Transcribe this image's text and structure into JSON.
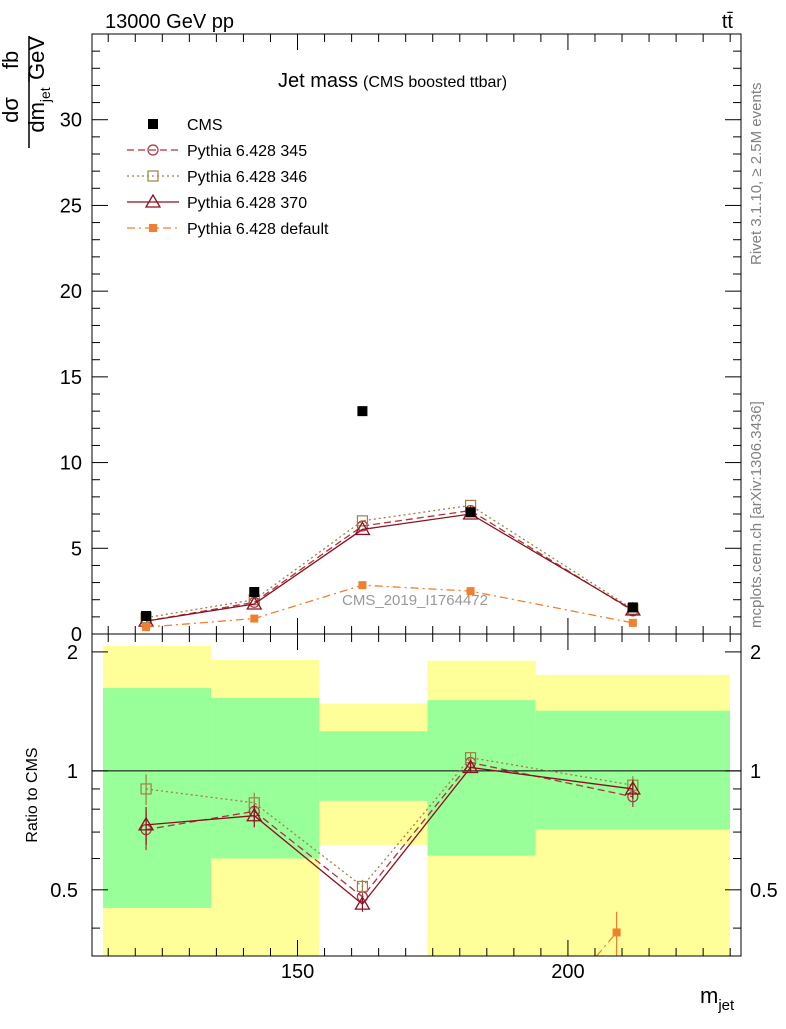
{
  "header": {
    "energy_label": "13000 GeV pp",
    "process_label": "tt̄"
  },
  "side_labels": {
    "rivet": "Rivet 3.1.10, ≥ 2.5M events",
    "mcplots": "mcplots.cern.ch [arXiv:1306.3436]"
  },
  "chart_data": [
    {
      "type": "scatter",
      "title": "Jet mass",
      "subtitle": "(CMS boosted ttbar)",
      "ylabel": "dσ/dm_jet [fb/GeV]",
      "ylabel_numerator": "dσ",
      "ylabel_denominator": "dm",
      "ylabel_denominator_sub": "jet",
      "ylabel_unit_top": "fb",
      "ylabel_unit_bottom": "GeV",
      "watermark": "CMS_2019_I1764472",
      "xlim": [
        112,
        232
      ],
      "ylim": [
        0,
        35
      ],
      "yticks": [
        0,
        5,
        10,
        15,
        20,
        25,
        30
      ],
      "legend_position": "top-left",
      "bin_edges": [
        112,
        132,
        152,
        172,
        192,
        232
      ],
      "x": [
        122,
        142,
        162,
        182,
        212
      ],
      "series": [
        {
          "name": "CMS",
          "color": "#000000",
          "marker": "filled-square",
          "style": "none",
          "values": [
            1.05,
            2.45,
            13.0,
            7.1,
            1.55
          ]
        },
        {
          "name": "Pythia 6.428 345",
          "color": "#b03040",
          "marker": "open-circle",
          "style": "dashed",
          "values": [
            0.75,
            1.85,
            6.3,
            7.2,
            1.35
          ]
        },
        {
          "name": "Pythia 6.428 346",
          "color": "#a08040",
          "marker": "open-square",
          "style": "dotted",
          "values": [
            0.95,
            2.0,
            6.6,
            7.5,
            1.45
          ]
        },
        {
          "name": "Pythia 6.428 370",
          "color": "#8b1020",
          "marker": "open-triangle",
          "style": "solid",
          "values": [
            0.75,
            1.75,
            6.1,
            7.0,
            1.4
          ]
        },
        {
          "name": "Pythia 6.428 default",
          "color": "#f08030",
          "marker": "filled-square-small",
          "style": "dashdot",
          "values": [
            0.4,
            0.9,
            2.85,
            2.5,
            0.65
          ]
        }
      ]
    },
    {
      "type": "scatter",
      "ylabel": "Ratio to CMS",
      "xlabel": "m_jet",
      "xlabel_main": "m",
      "xlabel_sub": "jet",
      "xlim": [
        112,
        232
      ],
      "ylim": [
        0.34,
        2.22
      ],
      "yticks": [
        0.5,
        1,
        2
      ],
      "xticks": [
        150,
        200
      ],
      "reference_line": 1.0,
      "x": [
        122,
        142,
        162,
        182,
        212
      ],
      "bands": {
        "green": [
          [
            0.45,
            1.62
          ],
          [
            0.6,
            1.53
          ],
          [
            0.84,
            1.26
          ],
          [
            0.61,
            1.51
          ],
          [
            0.71,
            1.42
          ]
        ],
        "yellow": [
          [
            0.34,
            2.07
          ],
          [
            0.34,
            1.91
          ],
          [
            0.65,
            1.48
          ],
          [
            0.34,
            1.9
          ],
          [
            0.34,
            1.75
          ]
        ]
      },
      "series": [
        {
          "name": "Pythia 6.428 345",
          "values": [
            0.71,
            0.79,
            0.48,
            1.05,
            0.86
          ],
          "errors": [
            0.08,
            0.05,
            0.02,
            0.03,
            0.05
          ]
        },
        {
          "name": "Pythia 6.428 346",
          "values": [
            0.9,
            0.83,
            0.51,
            1.08,
            0.92
          ],
          "errors": [
            0.08,
            0.05,
            0.02,
            0.03,
            0.05
          ]
        },
        {
          "name": "Pythia 6.428 370",
          "values": [
            0.73,
            0.77,
            0.46,
            1.02,
            0.9
          ],
          "errors": [
            0.08,
            0.05,
            0.02,
            0.03,
            0.05
          ]
        },
        {
          "name": "Pythia 6.428 default",
          "points": [
            [
              209,
              0.39
            ]
          ],
          "segment_from": [
            197,
            0.25
          ],
          "errors": [
            0.05
          ]
        }
      ]
    }
  ]
}
